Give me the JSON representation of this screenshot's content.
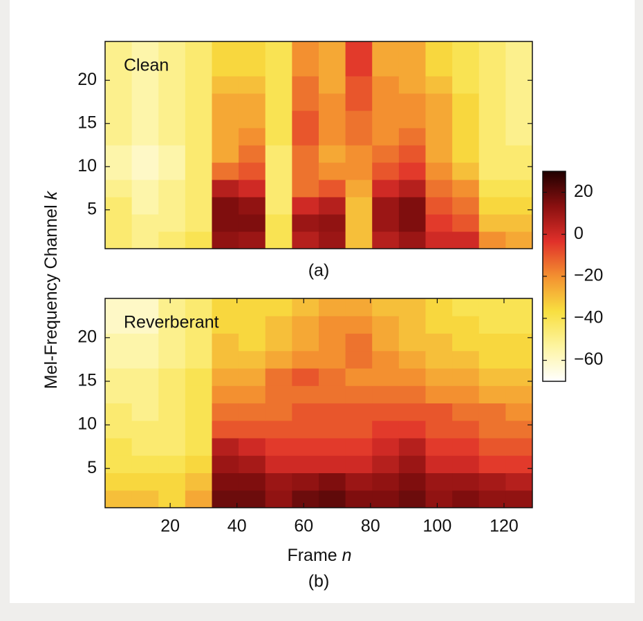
{
  "chart_data": [
    {
      "type": "heatmap",
      "annotation": "Clean",
      "caption": "(a)",
      "x": [
        4.5,
        12.5,
        20.5,
        28.5,
        36.5,
        44.5,
        52.5,
        60.5,
        68.5,
        76.5,
        84.5,
        92.5,
        100.5,
        108.5,
        116.5,
        124.5
      ],
      "y": [
        1.5,
        3.5,
        5.5,
        7.5,
        9.5,
        11.5,
        13.5,
        15.5,
        17.5,
        19.5,
        21.5,
        23.5
      ],
      "values": [
        [
          -45,
          -50,
          -45,
          -40,
          12,
          10,
          -40,
          5,
          10,
          -30,
          5,
          10,
          0,
          0,
          -20,
          -25
        ],
        [
          -45,
          -50,
          -50,
          -45,
          15,
          15,
          -40,
          10,
          12,
          -30,
          10,
          15,
          -5,
          -10,
          -30,
          -30
        ],
        [
          -45,
          -55,
          -50,
          -45,
          15,
          12,
          -45,
          0,
          5,
          -30,
          10,
          15,
          -10,
          -15,
          -35,
          -35
        ],
        [
          -50,
          -55,
          -50,
          -45,
          5,
          0,
          -45,
          -15,
          -10,
          -25,
          0,
          5,
          -15,
          -20,
          -40,
          -40
        ],
        [
          -55,
          -60,
          -55,
          -45,
          -15,
          -10,
          -45,
          -15,
          -20,
          -20,
          -10,
          -5,
          -20,
          -30,
          -45,
          -45
        ],
        [
          -55,
          -60,
          -55,
          -45,
          -25,
          -15,
          -45,
          -15,
          -25,
          -20,
          -15,
          -10,
          -25,
          -35,
          -45,
          -45
        ],
        [
          -50,
          -55,
          -50,
          -45,
          -25,
          -20,
          -40,
          -10,
          -20,
          -15,
          -20,
          -15,
          -25,
          -35,
          -45,
          -50
        ],
        [
          -50,
          -55,
          -50,
          -45,
          -25,
          -25,
          -40,
          -10,
          -20,
          -15,
          -20,
          -20,
          -25,
          -35,
          -45,
          -50
        ],
        [
          -50,
          -55,
          -50,
          -45,
          -25,
          -25,
          -40,
          -15,
          -20,
          -10,
          -20,
          -20,
          -25,
          -35,
          -45,
          -50
        ],
        [
          -50,
          -55,
          -50,
          -45,
          -30,
          -30,
          -40,
          -15,
          -25,
          -10,
          -20,
          -25,
          -30,
          -40,
          -45,
          -50
        ],
        [
          -50,
          -55,
          -50,
          -45,
          -35,
          -35,
          -40,
          -20,
          -25,
          -5,
          -25,
          -25,
          -35,
          -40,
          -45,
          -50
        ],
        [
          -50,
          -55,
          -50,
          -45,
          -35,
          -35,
          -40,
          -20,
          -25,
          -5,
          -25,
          -25,
          -35,
          -40,
          -45,
          -50
        ]
      ],
      "xlim": [
        0.5,
        128.5
      ],
      "ylim": [
        0.5,
        24.5
      ],
      "yticks": [
        5,
        10,
        15,
        20
      ]
    },
    {
      "type": "heatmap",
      "annotation": "Reverberant",
      "caption": "(b)",
      "xlabel": "Frame",
      "xlabel_symbol": "n",
      "x": [
        4.5,
        12.5,
        20.5,
        28.5,
        36.5,
        44.5,
        52.5,
        60.5,
        68.5,
        76.5,
        84.5,
        92.5,
        100.5,
        108.5,
        116.5,
        124.5
      ],
      "y": [
        1.5,
        3.5,
        5.5,
        7.5,
        9.5,
        11.5,
        13.5,
        15.5,
        17.5,
        19.5,
        21.5,
        23.5
      ],
      "values": [
        [
          -30,
          -30,
          -35,
          -25,
          18,
          18,
          12,
          18,
          20,
          15,
          15,
          18,
          12,
          15,
          12,
          12
        ],
        [
          -35,
          -35,
          -35,
          -30,
          15,
          15,
          10,
          12,
          15,
          10,
          12,
          15,
          10,
          10,
          8,
          5
        ],
        [
          -40,
          -40,
          -40,
          -35,
          10,
          8,
          0,
          0,
          0,
          0,
          5,
          10,
          0,
          0,
          -5,
          -5
        ],
        [
          -40,
          -45,
          -45,
          -40,
          5,
          0,
          -5,
          -5,
          -5,
          -5,
          0,
          5,
          -5,
          -5,
          -10,
          -10
        ],
        [
          -45,
          -45,
          -45,
          -40,
          -10,
          -10,
          -10,
          -10,
          -10,
          -10,
          -5,
          -5,
          -10,
          -10,
          -15,
          -15
        ],
        [
          -45,
          -50,
          -45,
          -40,
          -15,
          -15,
          -15,
          -10,
          -10,
          -10,
          -10,
          -10,
          -10,
          -15,
          -15,
          -20
        ],
        [
          -50,
          -50,
          -45,
          -40,
          -20,
          -20,
          -15,
          -15,
          -15,
          -15,
          -15,
          -15,
          -20,
          -20,
          -25,
          -25
        ],
        [
          -50,
          -50,
          -45,
          -40,
          -25,
          -25,
          -15,
          -10,
          -15,
          -20,
          -20,
          -20,
          -25,
          -25,
          -30,
          -30
        ],
        [
          -55,
          -55,
          -50,
          -45,
          -30,
          -30,
          -25,
          -20,
          -20,
          -15,
          -20,
          -25,
          -30,
          -30,
          -35,
          -35
        ],
        [
          -55,
          -55,
          -50,
          -45,
          -30,
          -35,
          -30,
          -25,
          -20,
          -15,
          -25,
          -30,
          -30,
          -35,
          -35,
          -35
        ],
        [
          -60,
          -60,
          -50,
          -45,
          -35,
          -35,
          -30,
          -25,
          -20,
          -20,
          -25,
          -30,
          -35,
          -35,
          -40,
          -40
        ],
        [
          -60,
          -60,
          -50,
          -45,
          -35,
          -35,
          -35,
          -30,
          -25,
          -25,
          -30,
          -30,
          -35,
          -40,
          -40,
          -40
        ]
      ],
      "xlim": [
        0.5,
        128.5
      ],
      "ylim": [
        0.5,
        24.5
      ],
      "xticks": [
        20,
        40,
        60,
        80,
        100,
        120
      ],
      "yticks": [
        5,
        10,
        15,
        20
      ]
    },
    {
      "type": "colorbar",
      "ylabel": "Mel-Frequency Channel",
      "ylabel_symbol": "k",
      "lim": [
        -70,
        30
      ],
      "ticks": [
        20,
        0,
        {
          "value": -20,
          "label": "−20"
        },
        {
          "value": -40,
          "label": "−40"
        },
        {
          "value": -60,
          "label": "−60"
        }
      ],
      "colormap": [
        "#ffffff",
        "#fdf4a0",
        "#f8df40",
        "#f39030",
        "#e0302a",
        "#8a1010",
        "#200000"
      ]
    }
  ]
}
